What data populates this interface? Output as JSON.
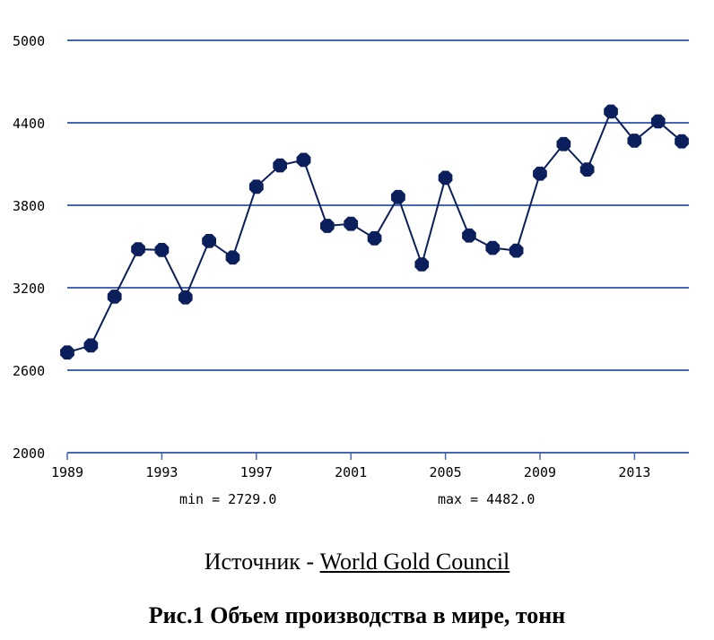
{
  "chart_data": {
    "type": "line",
    "x": [
      1989,
      1990,
      1991,
      1992,
      1993,
      1994,
      1995,
      1996,
      1997,
      1998,
      1999,
      2000,
      2001,
      2002,
      2003,
      2004,
      2005,
      2006,
      2007,
      2008,
      2009,
      2010,
      2011,
      2012,
      2013,
      2014,
      2015
    ],
    "series": [
      {
        "values": [
          2729,
          2780,
          3135,
          3480,
          3475,
          3130,
          3540,
          3420,
          3935,
          4090,
          4130,
          3650,
          3665,
          3560,
          3860,
          3370,
          4000,
          3580,
          3490,
          3470,
          4030,
          4245,
          4060,
          4482,
          4270,
          4410,
          4265
        ],
        "color": "#0b1f5c"
      }
    ],
    "x_ticks": [
      "1989",
      "1993",
      "1997",
      "2001",
      "2005",
      "2009",
      "2013"
    ],
    "y_ticks": [
      "2000",
      "2600",
      "3200",
      "3800",
      "4400",
      "5000"
    ],
    "ylim": [
      2000,
      5000
    ],
    "xlim": [
      1989,
      2015.3
    ],
    "grid": true,
    "grid_color": "#4466b5",
    "min_text": "min = 2729.0",
    "max_text": "max = 4482.0"
  },
  "source": {
    "prefix": "Источник - ",
    "link_text": "World Gold Council"
  },
  "caption": "Рис.1 Объем производства в мире, тонн"
}
